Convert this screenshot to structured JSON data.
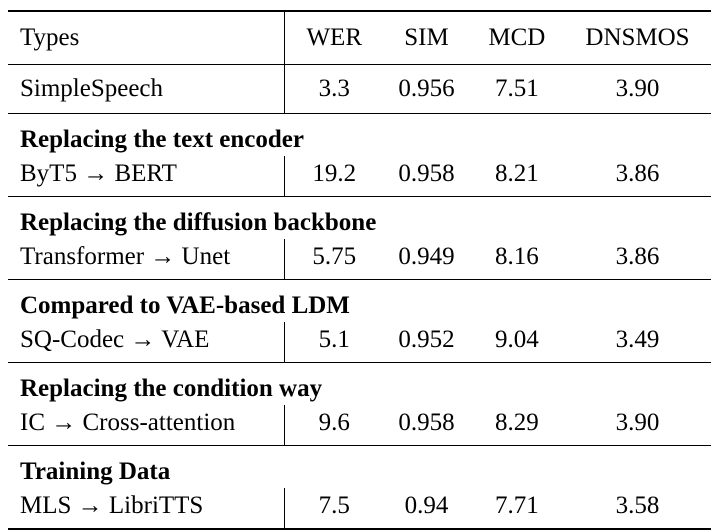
{
  "table": {
    "headers": [
      "Types",
      "WER",
      "SIM",
      "MCD",
      "DNSMOS"
    ],
    "baseline": {
      "type": "SimpleSpeech",
      "wer": "3.3",
      "sim": "0.956",
      "mcd": "7.51",
      "dnsmos": "3.90"
    },
    "groups": [
      {
        "title": "Replacing the text encoder",
        "row": {
          "type": "ByT5 → BERT",
          "wer": "19.2",
          "sim": "0.958",
          "mcd": "8.21",
          "dnsmos": "3.86"
        }
      },
      {
        "title": "Replacing the diffusion backbone",
        "row": {
          "type": "Transformer → Unet",
          "wer": "5.75",
          "sim": "0.949",
          "mcd": "8.16",
          "dnsmos": "3.86"
        }
      },
      {
        "title": "Compared to VAE-based LDM",
        "row": {
          "type": "SQ-Codec → VAE",
          "wer": "5.1",
          "sim": "0.952",
          "mcd": "9.04",
          "dnsmos": "3.49"
        }
      },
      {
        "title": "Replacing the condition way",
        "row": {
          "type": "IC → Cross-attention",
          "wer": "9.6",
          "sim": "0.958",
          "mcd": "8.29",
          "dnsmos": "3.90"
        }
      },
      {
        "title": "Training Data",
        "row": {
          "type": "MLS → LibriTTS",
          "wer": "7.5",
          "sim": "0.94",
          "mcd": "7.71",
          "dnsmos": "3.58"
        }
      }
    ]
  }
}
